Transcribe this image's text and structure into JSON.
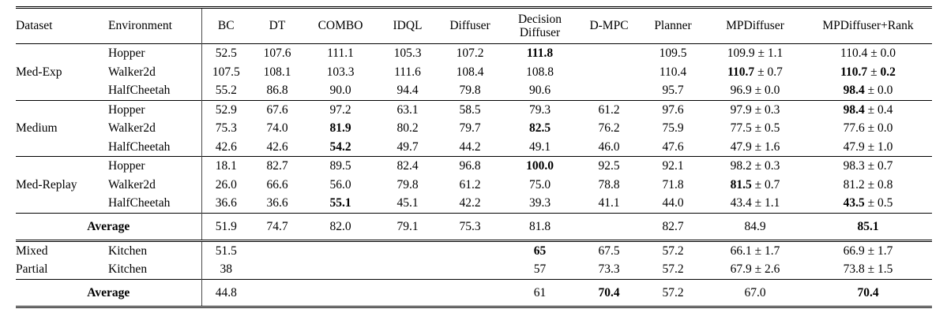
{
  "colors": {
    "text": "#000000",
    "background": "#ffffff",
    "rule": "#000000",
    "divider": "#4a4a4a"
  },
  "table": {
    "headers": [
      "Dataset",
      "Environment",
      "BC",
      "DT",
      "COMBO",
      "IDQL",
      "Diffuser",
      [
        "Decision",
        "Diffuser"
      ],
      "D-MPC",
      "Planner",
      "MPDiffuser",
      "MPDiffuser+Rank"
    ],
    "average_label": "Average",
    "plus_minus": "±",
    "sections": [
      {
        "kind": "group",
        "dataset": "Med-Exp",
        "rule_above": "single",
        "rows": [
          {
            "env": "Hopper",
            "cells": [
              {
                "v": "52.5"
              },
              {
                "v": "107.6"
              },
              {
                "v": "111.1"
              },
              {
                "v": "105.3"
              },
              {
                "v": "107.2"
              },
              {
                "v": "111.8",
                "b": true
              },
              {},
              {
                "v": "109.5"
              },
              {
                "v": "109.9",
                "pm": "1.1"
              },
              {
                "v": "110.4",
                "pm": "0.0"
              }
            ]
          },
          {
            "env": "Walker2d",
            "cells": [
              {
                "v": "107.5"
              },
              {
                "v": "108.1"
              },
              {
                "v": "103.3"
              },
              {
                "v": "111.6"
              },
              {
                "v": "108.4"
              },
              {
                "v": "108.8"
              },
              {},
              {
                "v": "110.4"
              },
              {
                "v": "110.7",
                "b": true,
                "pm": "0.7"
              },
              {
                "v": "110.7",
                "b": true,
                "pm": "0.2",
                "bpm": true
              }
            ]
          },
          {
            "env": "HalfCheetah",
            "cells": [
              {
                "v": "55.2"
              },
              {
                "v": "86.8"
              },
              {
                "v": "90.0"
              },
              {
                "v": "94.4"
              },
              {
                "v": "79.8"
              },
              {
                "v": "90.6"
              },
              {},
              {
                "v": "95.7"
              },
              {
                "v": "96.9",
                "pm": "0.0"
              },
              {
                "v": "98.4",
                "b": true,
                "pm": "0.0"
              }
            ]
          }
        ]
      },
      {
        "kind": "group",
        "dataset": "Medium",
        "rule_above": "single",
        "rows": [
          {
            "env": "Hopper",
            "cells": [
              {
                "v": "52.9"
              },
              {
                "v": "67.6"
              },
              {
                "v": "97.2"
              },
              {
                "v": "63.1"
              },
              {
                "v": "58.5"
              },
              {
                "v": "79.3"
              },
              {
                "v": "61.2"
              },
              {
                "v": "97.6"
              },
              {
                "v": "97.9",
                "pm": "0.3"
              },
              {
                "v": "98.4",
                "b": true,
                "pm": "0.4"
              }
            ]
          },
          {
            "env": "Walker2d",
            "cells": [
              {
                "v": "75.3"
              },
              {
                "v": "74.0"
              },
              {
                "v": "81.9",
                "b": true
              },
              {
                "v": "80.2"
              },
              {
                "v": "79.7"
              },
              {
                "v": "82.5",
                "b": true
              },
              {
                "v": "76.2"
              },
              {
                "v": "75.9"
              },
              {
                "v": "77.5",
                "pm": "0.5"
              },
              {
                "v": "77.6",
                "pm": "0.0"
              }
            ]
          },
          {
            "env": "HalfCheetah",
            "cells": [
              {
                "v": "42.6"
              },
              {
                "v": "42.6"
              },
              {
                "v": "54.2",
                "b": true
              },
              {
                "v": "49.7"
              },
              {
                "v": "44.2"
              },
              {
                "v": "49.1"
              },
              {
                "v": "46.0"
              },
              {
                "v": "47.6"
              },
              {
                "v": "47.9",
                "pm": "1.6"
              },
              {
                "v": "47.9",
                "pm": "1.0"
              }
            ]
          }
        ]
      },
      {
        "kind": "group",
        "dataset": "Med-Replay",
        "rule_above": "single",
        "rows": [
          {
            "env": "Hopper",
            "cells": [
              {
                "v": "18.1"
              },
              {
                "v": "82.7"
              },
              {
                "v": "89.5"
              },
              {
                "v": "82.4"
              },
              {
                "v": "96.8"
              },
              {
                "v": "100.0",
                "b": true
              },
              {
                "v": "92.5"
              },
              {
                "v": "92.1"
              },
              {
                "v": "98.2",
                "pm": "0.3"
              },
              {
                "v": "98.3",
                "pm": "0.7"
              }
            ]
          },
          {
            "env": "Walker2d",
            "cells": [
              {
                "v": "26.0"
              },
              {
                "v": "66.6"
              },
              {
                "v": "56.0"
              },
              {
                "v": "79.8"
              },
              {
                "v": "61.2"
              },
              {
                "v": "75.0"
              },
              {
                "v": "78.8"
              },
              {
                "v": "71.8"
              },
              {
                "v": "81.5",
                "b": true,
                "pm": "0.7"
              },
              {
                "v": "81.2",
                "pm": "0.8"
              }
            ]
          },
          {
            "env": "HalfCheetah",
            "cells": [
              {
                "v": "36.6"
              },
              {
                "v": "36.6"
              },
              {
                "v": "55.1",
                "b": true
              },
              {
                "v": "45.1"
              },
              {
                "v": "42.2"
              },
              {
                "v": "39.3"
              },
              {
                "v": "41.1"
              },
              {
                "v": "44.0"
              },
              {
                "v": "43.4",
                "pm": "1.1"
              },
              {
                "v": "43.5",
                "b": true,
                "pm": "0.5"
              }
            ]
          }
        ]
      },
      {
        "kind": "average",
        "rule_above": "single",
        "cells": [
          {
            "v": "51.9"
          },
          {
            "v": "74.7"
          },
          {
            "v": "82.0"
          },
          {
            "v": "79.1"
          },
          {
            "v": "75.3"
          },
          {
            "v": "81.8"
          },
          {},
          {
            "v": "82.7"
          },
          {
            "v": "84.9"
          },
          {
            "v": "85.1",
            "b": true
          }
        ]
      },
      {
        "kind": "group",
        "dataset": "Mixed",
        "rule_above": "double",
        "rows": [
          {
            "env": "Kitchen",
            "cells": [
              {
                "v": "51.5"
              },
              {},
              {},
              {},
              {},
              {
                "v": "65",
                "b": true
              },
              {
                "v": "67.5"
              },
              {
                "v": "57.2"
              },
              {
                "v": "66.1",
                "pm": "1.7"
              },
              {
                "v": "66.9",
                "pm": "1.7"
              }
            ]
          }
        ]
      },
      {
        "kind": "group",
        "dataset": "Partial",
        "rule_above": "none",
        "rows": [
          {
            "env": "Kitchen",
            "cells": [
              {
                "v": "38"
              },
              {},
              {},
              {},
              {},
              {
                "v": "57"
              },
              {
                "v": "73.3"
              },
              {
                "v": "57.2"
              },
              {
                "v": "67.9",
                "pm": "2.6"
              },
              {
                "v": "73.8",
                "pm": "1.5"
              }
            ]
          }
        ]
      },
      {
        "kind": "average",
        "rule_above": "single",
        "cells": [
          {
            "v": "44.8"
          },
          {},
          {},
          {},
          {},
          {
            "v": "61"
          },
          {
            "v": "70.4",
            "b": true
          },
          {
            "v": "57.2"
          },
          {
            "v": "67.0"
          },
          {
            "v": "70.4",
            "b": true
          }
        ]
      }
    ]
  }
}
